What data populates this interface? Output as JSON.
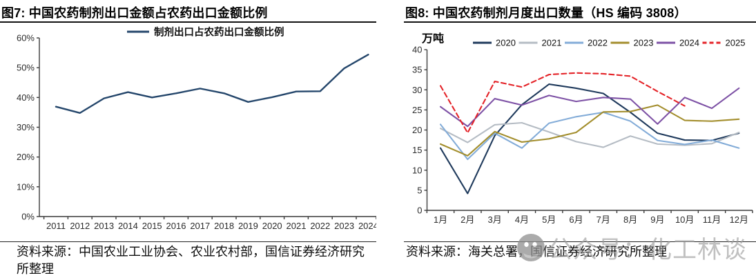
{
  "figure7": {
    "title": "图7: 中国农药制剂出口金额占农药出口金额比例",
    "source": "资料来源：中国农业工业协会、农业农村部，国信证券经济研究所整理"
  },
  "figure8": {
    "title": "图8: 中国农药制剂月度出口数量（HS 编码 3808）",
    "unit_label": "万吨",
    "source": "资料来源：海关总署，国信证券经济研究所整理"
  },
  "watermark": {
    "text": "公众号：化工林谈",
    "icon": "wechat-logo"
  },
  "chart_data": [
    {
      "type": "line",
      "title": "中国农药制剂出口金额占农药出口金额比例",
      "categories": [
        "2011",
        "2012",
        "2013",
        "2014",
        "2015",
        "2016",
        "2017",
        "2018",
        "2019",
        "2020",
        "2021",
        "2022",
        "2023",
        "2024"
      ],
      "series": [
        {
          "name": "制剂出口占农药出口金额比例",
          "color": "#24466b",
          "dash": false,
          "values": [
            36.9,
            34.8,
            39.7,
            41.8,
            40.0,
            41.4,
            43.0,
            41.4,
            38.5,
            40.1,
            42.0,
            42.1,
            49.8,
            54.4
          ]
        }
      ],
      "xlabel": "",
      "ylabel": "",
      "ylim": [
        0,
        60
      ],
      "ytick_step": 10,
      "yformat": "percent",
      "grid": false,
      "legend_position": "top-center"
    },
    {
      "type": "line",
      "title": "中国农药制剂月度出口数量（HS 编码 3808）",
      "categories": [
        "1月",
        "2月",
        "3月",
        "4月",
        "5月",
        "6月",
        "7月",
        "8月",
        "9月",
        "10月",
        "11月",
        "12月"
      ],
      "series": [
        {
          "name": "2020",
          "color": "#1f3a5c",
          "dash": false,
          "values": [
            15.5,
            4.2,
            18.6,
            26.3,
            31.4,
            30.4,
            29.1,
            24.4,
            19.2,
            17.5,
            17.4,
            19.2
          ]
        },
        {
          "name": "2021",
          "color": "#b5bcc4",
          "dash": false,
          "values": [
            20.4,
            16.9,
            21.3,
            21.8,
            19.5,
            17.1,
            15.7,
            18.5,
            16.5,
            16.2,
            16.6,
            19.4
          ]
        },
        {
          "name": "2022",
          "color": "#83acd8",
          "dash": false,
          "values": [
            21.4,
            12.7,
            19.2,
            15.5,
            21.7,
            23.3,
            24.4,
            22.2,
            17.4,
            16.4,
            17.5,
            15.5
          ]
        },
        {
          "name": "2023",
          "color": "#a38e2d",
          "dash": false,
          "values": [
            16.5,
            13.6,
            19.6,
            17.0,
            17.8,
            19.4,
            24.5,
            24.6,
            26.2,
            22.4,
            22.2,
            22.7
          ]
        },
        {
          "name": "2024",
          "color": "#7d51a5",
          "dash": false,
          "values": [
            25.8,
            20.9,
            27.8,
            26.2,
            28.6,
            27.1,
            28.1,
            27.7,
            21.5,
            28.1,
            25.4,
            30.4
          ]
        },
        {
          "name": "2025",
          "color": "#e42328",
          "dash": true,
          "values": [
            31.0,
            19.3,
            32.1,
            30.7,
            33.8,
            34.2,
            34.0,
            33.4,
            29.6,
            26.0,
            null,
            null
          ]
        }
      ],
      "xlabel": "",
      "ylabel": "万吨",
      "ylim": [
        0,
        40
      ],
      "ytick_step": 5,
      "yformat": "number",
      "grid": false,
      "legend_position": "top-row"
    }
  ]
}
